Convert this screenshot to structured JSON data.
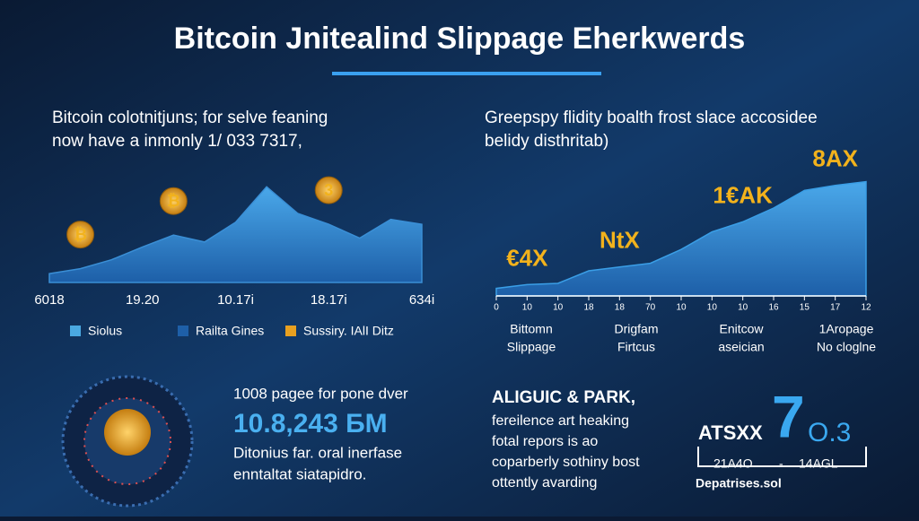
{
  "header": {
    "title": "Bitcoin Jnitealind Slippage Eherkwerds"
  },
  "left_panel": {
    "heading": [
      "Bitcoin colotnitjuns; for selve feaning",
      "now have a inmonly 1/ 033 7317,"
    ]
  },
  "right_panel": {
    "heading": [
      "Greepspy flidity boalth frost slace accosidee",
      "belidy disthritab)"
    ],
    "columns": [
      [
        "Bittomn",
        "Slippage"
      ],
      [
        "Drigfam",
        "Firtcus"
      ],
      [
        "Enitcow",
        "aseician"
      ],
      [
        "1Aropage",
        "No cloglne"
      ]
    ]
  },
  "chart_data": [
    {
      "type": "area",
      "color": "#3a8fd6",
      "categories": [
        "6018",
        null,
        null,
        "19.20",
        null,
        null,
        "10.17i",
        null,
        null,
        "18.17i",
        null,
        null,
        "634i"
      ],
      "values": [
        9,
        14,
        23,
        36,
        48,
        41,
        61,
        97,
        70,
        59,
        45,
        64,
        59
      ],
      "ylim": [
        0,
        100
      ],
      "annotations": [
        {
          "label": "₿",
          "index": 1
        },
        {
          "label": "₿",
          "index": 4
        },
        {
          "label": "3",
          "index": 9
        }
      ],
      "legend": [
        {
          "name": "Siolus",
          "color": "#4aa8e0"
        },
        {
          "name": "Railta Gines",
          "color": "#1e5fa8"
        },
        {
          "name": "Sussiry. IAlI Ditz",
          "color": "#e8a020"
        }
      ]
    },
    {
      "type": "area",
      "color": "#3a9ee6",
      "categories": [
        "0",
        "10",
        "10",
        "18",
        "18",
        "70",
        "10",
        "10",
        "10",
        "16",
        "15",
        "17",
        "12"
      ],
      "values": [
        6,
        9,
        10,
        20,
        23,
        26,
        37,
        51,
        59,
        70,
        84,
        88,
        91
      ],
      "ylim": [
        0,
        100
      ],
      "annotations": [
        {
          "label": "€4X",
          "index": 1
        },
        {
          "label": "NtX",
          "index": 4
        },
        {
          "label": "1€AK",
          "index": 8
        },
        {
          "label": "8AX",
          "index": 11
        }
      ]
    }
  ],
  "stats_left": {
    "caption": "1008 pagee for pone dver",
    "figure": "10.8,243 БM",
    "body": [
      "Ditonius far. oral inerfase",
      "enntaltat siatapidro."
    ]
  },
  "stats_right": {
    "heading": "ALIGUIC & PARK,",
    "body": [
      "fereilence art heaking",
      "fotal repors is ao",
      "coparberly sothiny bost",
      "ottently avarding"
    ],
    "code": "ATSXX",
    "big": "7",
    "small": "O.3",
    "range": [
      "21A4O",
      "-",
      "14AGL"
    ],
    "footer": "Depatrises.sol"
  }
}
